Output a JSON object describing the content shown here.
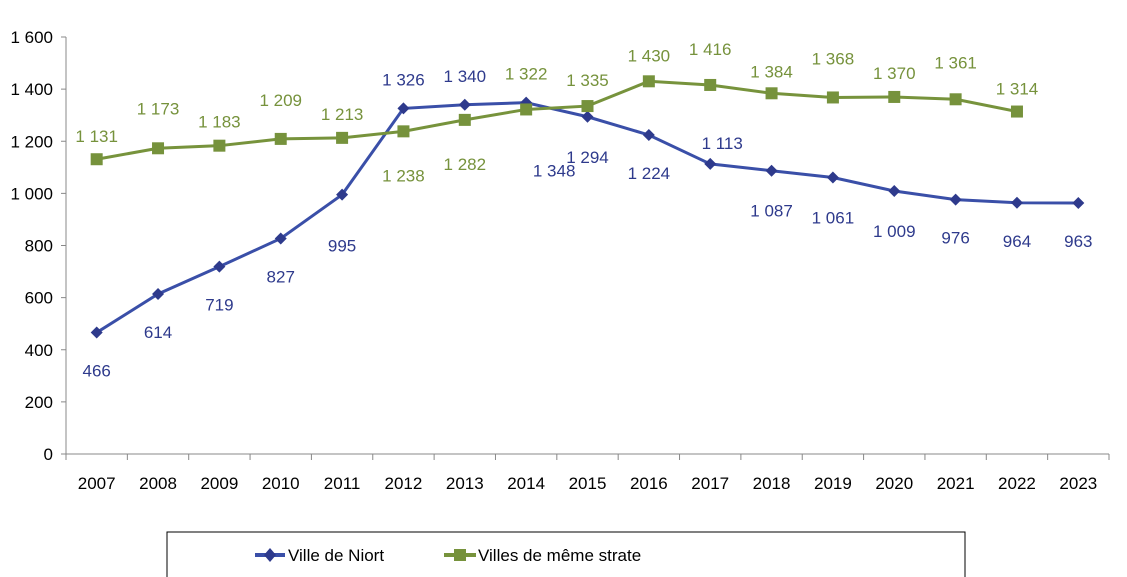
{
  "chart_data": {
    "type": "line",
    "title": "",
    "xlabel": "",
    "ylabel": "",
    "ylim": [
      0,
      1600
    ],
    "yticks": [
      "0",
      "200",
      "400",
      "600",
      "800",
      "1 000",
      "1 200",
      "1 400",
      "1 600"
    ],
    "ytick_values": [
      0,
      200,
      400,
      600,
      800,
      1000,
      1200,
      1400,
      1600
    ],
    "categories": [
      "2007",
      "2008",
      "2009",
      "2010",
      "2011",
      "2012",
      "2013",
      "2014",
      "2015",
      "2016",
      "2017",
      "2018",
      "2019",
      "2020",
      "2021",
      "2022",
      "2023"
    ],
    "grid": false,
    "legend_position": "bottom",
    "series": [
      {
        "name": "Ville de Niort",
        "color": "#2E3A8C",
        "line_color": "#3A4FA8",
        "marker": "diamond",
        "values": [
          466,
          614,
          719,
          827,
          995,
          1326,
          1340,
          1348,
          1294,
          1224,
          1113,
          1087,
          1061,
          1009,
          976,
          964,
          963
        ],
        "labels": [
          "466",
          "614",
          "719",
          "827",
          "995",
          "1 326",
          "1 340",
          "1 348",
          "1 294",
          "1 224",
          "1 113",
          "1 087",
          "1 061",
          "1 009",
          "976",
          "964",
          "963"
        ]
      },
      {
        "name": "Villes de même strate",
        "color": "#76923C",
        "line_color": "#77933C",
        "marker": "square",
        "values": [
          1131,
          1173,
          1183,
          1209,
          1213,
          1238,
          1282,
          1322,
          1335,
          1430,
          1416,
          1384,
          1368,
          1370,
          1361,
          1314,
          null
        ],
        "labels": [
          "1 131",
          "1 173",
          "1 183",
          "1 209",
          "1 213",
          "1 238",
          "1 282",
          "1 322",
          "1 335",
          "1 430",
          "1 416",
          "1 384",
          "1 368",
          "1 370",
          "1 361",
          "1 314",
          ""
        ]
      }
    ]
  }
}
